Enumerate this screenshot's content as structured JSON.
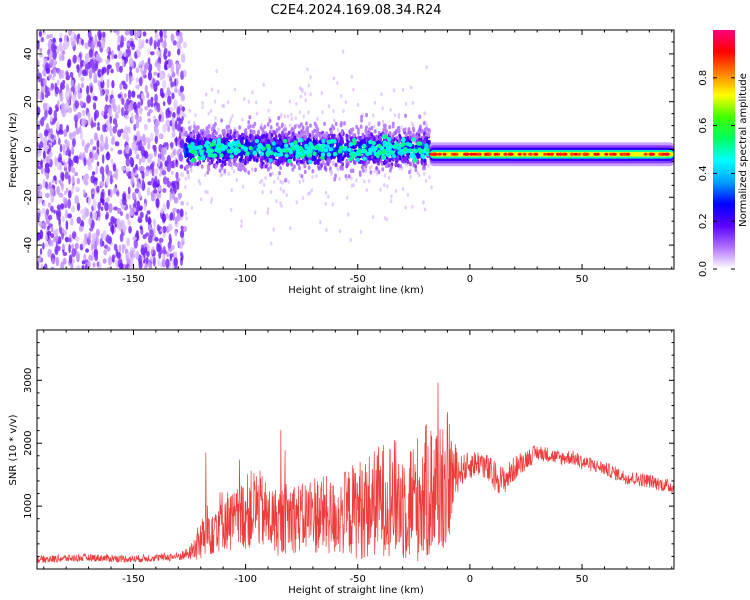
{
  "title": "C2E4.2024.169.08.34.R24",
  "colors": {
    "snr_line": "#ee3b3b",
    "axis": "#000000",
    "background": "#ffffff"
  },
  "chart_data": [
    {
      "type": "heatmap",
      "xlabel": "Height of straight line (km)",
      "ylabel": "Frequency (Hz)",
      "xlim": [
        -193,
        91
      ],
      "ylim": [
        -50,
        50
      ],
      "x_ticks": [
        -150,
        -100,
        -50,
        0,
        50
      ],
      "x_tick_labels": [
        "-150",
        "-100",
        "-50",
        "0",
        "50"
      ],
      "y_ticks": [
        -40,
        -20,
        0,
        20,
        40
      ],
      "y_tick_labels": [
        "-40",
        "-20",
        "0",
        "20",
        "40"
      ],
      "colorbar": {
        "label": "Normalized spectral amplitude",
        "range": [
          0,
          1
        ],
        "ticks": [
          0.0,
          0.2,
          0.4,
          0.6,
          0.8
        ],
        "tick_labels": [
          "0.0",
          "0.2",
          "0.4",
          "0.6",
          "0.8"
        ],
        "colormap": [
          "#ffffff",
          "#b070ff",
          "#5a00ff",
          "#0000ff",
          "#00a0ff",
          "#00ffff",
          "#00ff60",
          "#40ff00",
          "#ffff00",
          "#ff8000",
          "#ff0000",
          "#ff0080"
        ]
      },
      "description_regions": [
        {
          "x_range": [
            -193,
            -127
          ],
          "freq_range": [
            -50,
            50
          ],
          "amplitude": 0.08,
          "pattern": "noise"
        },
        {
          "x_range": [
            -127,
            -18
          ],
          "freq_center": 0,
          "freq_halfwidth": 8,
          "amplitude": 0.3,
          "pattern": "broad"
        },
        {
          "x_range": [
            -18,
            91
          ],
          "freq_center": -2,
          "freq_halfwidth": 2,
          "amplitude": 0.6,
          "pattern": "narrow"
        }
      ]
    },
    {
      "type": "line",
      "xlabel": "Height of straight line (km)",
      "ylabel": "SNR (10 * v/v)",
      "xlim": [
        -193,
        91
      ],
      "ylim": [
        0,
        3800
      ],
      "x_ticks": [
        -150,
        -100,
        -50,
        0,
        50
      ],
      "x_tick_labels": [
        "-150",
        "-100",
        "-50",
        "0",
        "50"
      ],
      "y_ticks": [
        1000,
        2000,
        3000
      ],
      "y_tick_labels": [
        "1000",
        "2000",
        "3000"
      ],
      "series": [
        {
          "x": [
            -193,
            -180,
            -170,
            -160,
            -150,
            -140,
            -130,
            -125,
            -120,
            -115,
            -110,
            -105,
            -100,
            -95,
            -90,
            -85,
            -80,
            -75,
            -70,
            -65,
            -60,
            -55,
            -50,
            -45,
            -40,
            -35,
            -30,
            -25,
            -20,
            -15,
            -10,
            -5,
            0,
            5,
            10,
            15,
            20,
            25,
            30,
            35,
            40,
            45,
            50,
            55,
            60,
            65,
            70,
            75,
            80,
            85,
            91
          ],
          "y": [
            150,
            170,
            180,
            170,
            160,
            180,
            200,
            250,
            450,
            700,
            800,
            750,
            900,
            1000,
            800,
            750,
            850,
            800,
            900,
            850,
            800,
            900,
            950,
            1000,
            1100,
            1150,
            1050,
            1100,
            1200,
            1300,
            1400,
            1550,
            1650,
            1700,
            1500,
            1400,
            1600,
            1750,
            1850,
            1820,
            1760,
            1780,
            1700,
            1650,
            1600,
            1520,
            1450,
            1430,
            1400,
            1350,
            1300
          ],
          "noise_amplitude": [
            60,
            60,
            60,
            60,
            60,
            60,
            70,
            100,
            350,
            500,
            500,
            500,
            600,
            650,
            550,
            550,
            600,
            550,
            650,
            650,
            600,
            700,
            800,
            850,
            900,
            950,
            950,
            1000,
            1100,
            1150,
            1100,
            250,
            220,
            220,
            250,
            230,
            200,
            160,
            130,
            120,
            120,
            120,
            120,
            110,
            110,
            110,
            110,
            110,
            110,
            110,
            110
          ]
        }
      ]
    }
  ]
}
